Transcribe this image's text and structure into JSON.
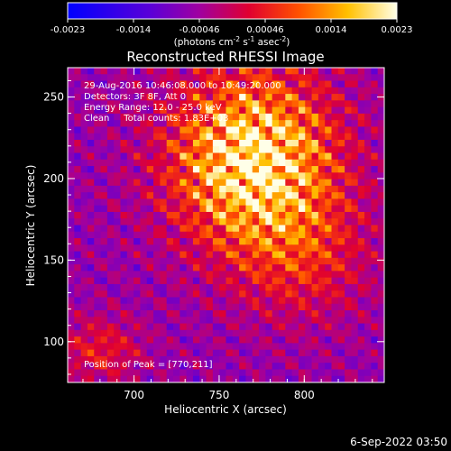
{
  "chart_data": {
    "type": "heatmap",
    "title": "Reconstructed RHESSI Image",
    "xlabel": "Heliocentric X (arcsec)",
    "ylabel": "Heliocentric Y (arcsec)",
    "xlim": [
      661,
      847
    ],
    "ylim": [
      75,
      268
    ],
    "x_ticks": [
      700,
      750,
      800
    ],
    "y_ticks": [
      100,
      150,
      200,
      250
    ],
    "colorbar": {
      "tick_labels": [
        "-0.0023",
        "-0.0014",
        "-0.00046",
        "0.00046",
        "0.0014",
        "0.0023"
      ],
      "units_prefix": "(photons cm",
      "units_middle": " s",
      "units_sup1": "-2",
      "units_sup2": "-1",
      "units_asec": " asec",
      "units_sup3": "-2",
      "units_close": ")"
    },
    "annotations": [
      "29-Aug-2016 10:46:08.000 to 10:49:20.000",
      "Detectors: 3F 8F, Att 0",
      "Energy Range: 12.0 - 25.0 keV",
      "Clean     Total counts: 1.83E+03"
    ],
    "peak_label": "Position of Peak = [770,211]",
    "peak": [
      770,
      211
    ]
  },
  "footer_date": "6-Sep-2022 03:50"
}
